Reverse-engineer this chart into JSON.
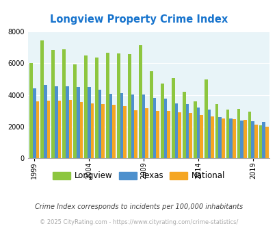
{
  "title": "Longview Property Crime Index",
  "years": [
    1999,
    2000,
    2001,
    2002,
    2003,
    2004,
    2005,
    2006,
    2007,
    2008,
    2009,
    2010,
    2011,
    2012,
    2013,
    2014,
    2015,
    2016,
    2017,
    2018,
    2019,
    2020
  ],
  "longview": [
    6000,
    7450,
    6850,
    6900,
    5950,
    6500,
    6380,
    6670,
    6640,
    6580,
    7150,
    5480,
    4700,
    5080,
    4180,
    3600,
    4980,
    3400,
    3090,
    3100,
    2960,
    2060
  ],
  "texas": [
    4420,
    4620,
    4550,
    4560,
    4520,
    4490,
    4350,
    4090,
    4100,
    4020,
    4020,
    3810,
    3780,
    3470,
    3440,
    3210,
    3060,
    2600,
    2520,
    2370,
    2350,
    2310
  ],
  "national": [
    3600,
    3620,
    3640,
    3660,
    3550,
    3470,
    3440,
    3380,
    3310,
    3050,
    3180,
    2990,
    2980,
    2890,
    2870,
    2730,
    2620,
    2530,
    2450,
    2410,
    2110,
    1970
  ],
  "colors": {
    "longview": "#8dc63f",
    "texas": "#4d90cd",
    "national": "#f5a623"
  },
  "ylim": [
    0,
    8000
  ],
  "yticks": [
    0,
    2000,
    4000,
    6000,
    8000
  ],
  "xtick_years": [
    1999,
    2004,
    2009,
    2014,
    2019
  ],
  "bg_color": "#e8f4f8",
  "subtitle": "Crime Index corresponds to incidents per 100,000 inhabitants",
  "footer": "© 2025 CityRating.com - https://www.cityrating.com/crime-statistics/",
  "title_color": "#1874cd",
  "subtitle_color": "#444444",
  "footer_color": "#aaaaaa"
}
